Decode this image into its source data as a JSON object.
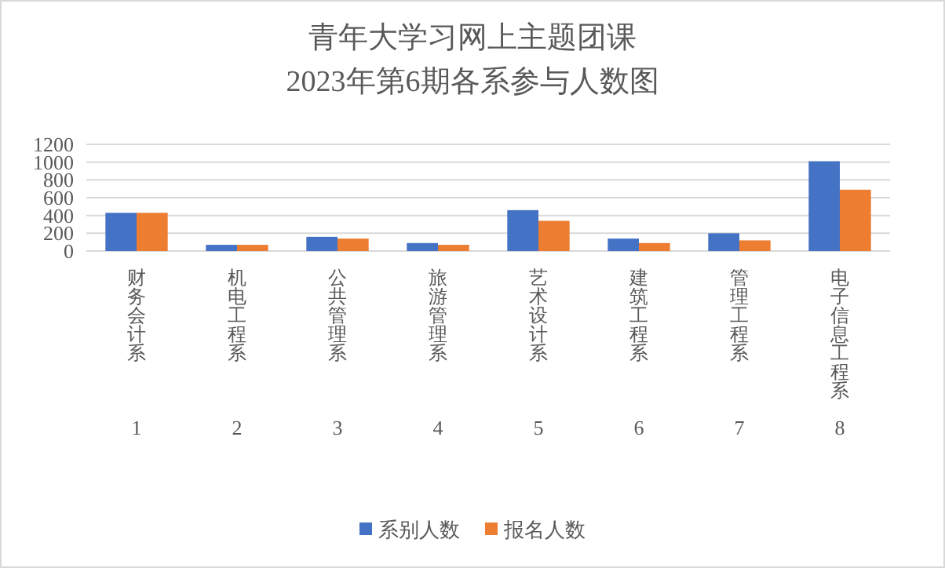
{
  "chart_data": {
    "type": "bar",
    "title": "青年大学习网上主题团课",
    "subtitle": "2023年第6期各系参与人数图",
    "categories": [
      "财务会计系",
      "机电工程系",
      "公共管理系",
      "旅游管理系",
      "艺术设计系",
      "建筑工程系",
      "管理工程系",
      "电子信息工程系"
    ],
    "series": [
      {
        "name": "系别人数",
        "color": "#4472c4",
        "values": [
          430,
          70,
          160,
          90,
          460,
          140,
          200,
          1010
        ]
      },
      {
        "name": "报名人数",
        "color": "#ed7d31",
        "values": [
          430,
          70,
          140,
          70,
          340,
          90,
          120,
          690
        ]
      }
    ],
    "annotations": [
      "1",
      "2",
      "3",
      "4",
      "5",
      "6",
      "7",
      "8"
    ],
    "ylim": [
      0,
      1200
    ],
    "yticks": [
      0,
      200,
      400,
      600,
      800,
      1000,
      1200
    ],
    "grid": "y",
    "legend": "bottom"
  }
}
